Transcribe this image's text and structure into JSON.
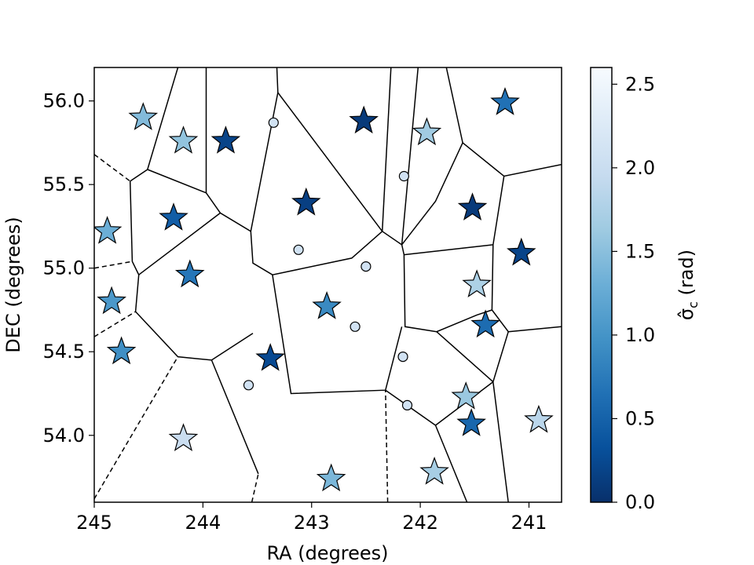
{
  "chart_data": {
    "type": "scatter",
    "xlabel": "RA (degrees)",
    "ylabel": "DEC (degrees)",
    "xlim": [
      245.0,
      240.7
    ],
    "ylim": [
      53.6,
      56.2
    ],
    "x_ticks": [
      {
        "value": 245,
        "label": "245"
      },
      {
        "value": 244,
        "label": "244"
      },
      {
        "value": 243,
        "label": "243"
      },
      {
        "value": 242,
        "label": "242"
      },
      {
        "value": 241,
        "label": "241"
      }
    ],
    "y_ticks": [
      {
        "value": 54.0,
        "label": "54.0"
      },
      {
        "value": 54.5,
        "label": "54.5"
      },
      {
        "value": 55.0,
        "label": "55.0"
      },
      {
        "value": 55.5,
        "label": "55.5"
      },
      {
        "value": 56.0,
        "label": "56.0"
      }
    ],
    "colorbar": {
      "label_main": "σ̂",
      "label_sub": "c",
      "label_unit": " (rad)",
      "range": [
        0.0,
        2.6
      ],
      "ticks": [
        {
          "value": 0.0,
          "label": "0.0"
        },
        {
          "value": 0.5,
          "label": "0.5"
        },
        {
          "value": 1.0,
          "label": "1.0"
        },
        {
          "value": 1.5,
          "label": "1.5"
        },
        {
          "value": 2.0,
          "label": "2.0"
        },
        {
          "value": 2.5,
          "label": "2.5"
        }
      ],
      "colormap": "Blues_r",
      "stops": [
        "#08306b",
        "#08519c",
        "#2171b5",
        "#4292c6",
        "#6baed6",
        "#9ecae1",
        "#c6dbef",
        "#deebf7",
        "#f7fbff"
      ]
    },
    "stars": [
      {
        "ra": 244.55,
        "dec": 55.9,
        "value": 1.45
      },
      {
        "ra": 244.18,
        "dec": 55.76,
        "value": 1.55
      },
      {
        "ra": 243.79,
        "dec": 55.76,
        "value": 0.2
      },
      {
        "ra": 242.52,
        "dec": 55.88,
        "value": 0.1
      },
      {
        "ra": 241.94,
        "dec": 55.81,
        "value": 1.65
      },
      {
        "ra": 241.22,
        "dec": 55.99,
        "value": 0.65
      },
      {
        "ra": 244.27,
        "dec": 55.3,
        "value": 0.45
      },
      {
        "ra": 243.05,
        "dec": 55.39,
        "value": 0.15
      },
      {
        "ra": 241.52,
        "dec": 55.36,
        "value": 0.1
      },
      {
        "ra": 244.88,
        "dec": 55.22,
        "value": 1.3
      },
      {
        "ra": 241.07,
        "dec": 55.09,
        "value": 0.2
      },
      {
        "ra": 244.12,
        "dec": 54.96,
        "value": 0.7
      },
      {
        "ra": 241.48,
        "dec": 54.9,
        "value": 1.75
      },
      {
        "ra": 244.84,
        "dec": 54.8,
        "value": 1.05
      },
      {
        "ra": 242.86,
        "dec": 54.77,
        "value": 0.9
      },
      {
        "ra": 241.4,
        "dec": 54.66,
        "value": 0.6
      },
      {
        "ra": 244.75,
        "dec": 54.5,
        "value": 0.95
      },
      {
        "ra": 243.38,
        "dec": 54.46,
        "value": 0.25
      },
      {
        "ra": 241.58,
        "dec": 54.23,
        "value": 1.6
      },
      {
        "ra": 241.53,
        "dec": 54.07,
        "value": 0.55
      },
      {
        "ra": 240.91,
        "dec": 54.09,
        "value": 1.85
      },
      {
        "ra": 244.18,
        "dec": 53.98,
        "value": 2.0
      },
      {
        "ra": 242.82,
        "dec": 53.74,
        "value": 1.4
      },
      {
        "ra": 241.87,
        "dec": 53.78,
        "value": 1.7
      }
    ],
    "circles": [
      {
        "ra": 243.35,
        "dec": 55.87,
        "value": 2.1
      },
      {
        "ra": 242.15,
        "dec": 55.55,
        "value": 2.1
      },
      {
        "ra": 243.12,
        "dec": 55.11,
        "value": 2.1
      },
      {
        "ra": 242.5,
        "dec": 55.01,
        "value": 2.1
      },
      {
        "ra": 242.6,
        "dec": 54.65,
        "value": 2.1
      },
      {
        "ra": 242.16,
        "dec": 54.47,
        "value": 2.1
      },
      {
        "ra": 243.58,
        "dec": 54.3,
        "value": 2.1
      },
      {
        "ra": 242.12,
        "dec": 54.18,
        "value": 2.1
      }
    ],
    "voronoi_edges": [
      {
        "style": "dashed",
        "points": [
          [
            245.0,
            55.68
          ],
          [
            244.67,
            55.52
          ]
        ]
      },
      {
        "style": "dashed",
        "points": [
          [
            245.0,
            55.0
          ],
          [
            244.65,
            55.04
          ]
        ]
      },
      {
        "style": "dashed",
        "points": [
          [
            245.0,
            54.59
          ],
          [
            244.62,
            54.74
          ]
        ]
      },
      {
        "style": "dashed",
        "points": [
          [
            245.0,
            53.62
          ],
          [
            244.23,
            54.47
          ]
        ]
      },
      {
        "style": "dashed",
        "points": [
          [
            243.55,
            53.6
          ],
          [
            243.49,
            53.77
          ]
        ]
      },
      {
        "style": "dashed",
        "points": [
          [
            242.3,
            53.6
          ],
          [
            242.32,
            54.27
          ]
        ]
      },
      {
        "style": "solid",
        "points": [
          [
            244.67,
            55.52
          ],
          [
            244.65,
            55.04
          ],
          [
            244.59,
            54.96
          ],
          [
            244.62,
            54.74
          ],
          [
            244.23,
            54.47
          ],
          [
            243.92,
            54.45
          ],
          [
            243.54,
            54.61
          ]
        ]
      },
      {
        "style": "solid",
        "points": [
          [
            244.67,
            55.52
          ],
          [
            244.51,
            55.59
          ],
          [
            244.23,
            56.2
          ]
        ]
      },
      {
        "style": "solid",
        "points": [
          [
            244.51,
            55.59
          ],
          [
            243.97,
            55.45
          ],
          [
            243.97,
            56.2
          ]
        ]
      },
      {
        "style": "solid",
        "points": [
          [
            243.97,
            55.45
          ],
          [
            243.84,
            55.33
          ],
          [
            243.56,
            55.22
          ],
          [
            243.31,
            56.05
          ],
          [
            243.32,
            56.2
          ]
        ]
      },
      {
        "style": "solid",
        "points": [
          [
            243.84,
            55.33
          ],
          [
            244.59,
            54.96
          ]
        ]
      },
      {
        "style": "solid",
        "points": [
          [
            243.56,
            55.22
          ],
          [
            243.54,
            55.03
          ],
          [
            243.36,
            54.96
          ],
          [
            242.63,
            55.06
          ],
          [
            242.35,
            55.22
          ],
          [
            242.17,
            55.14
          ],
          [
            241.86,
            55.4
          ],
          [
            241.61,
            55.75
          ],
          [
            241.23,
            55.55
          ],
          [
            240.7,
            55.62
          ]
        ]
      },
      {
        "style": "solid",
        "points": [
          [
            243.31,
            56.05
          ],
          [
            242.35,
            55.22
          ]
        ]
      },
      {
        "style": "solid",
        "points": [
          [
            243.36,
            54.96
          ],
          [
            243.19,
            54.25
          ],
          [
            242.32,
            54.27
          ],
          [
            242.17,
            54.65
          ]
        ]
      },
      {
        "style": "solid",
        "points": [
          [
            243.92,
            54.45
          ],
          [
            243.49,
            53.77
          ]
        ]
      },
      {
        "style": "solid",
        "points": [
          [
            242.35,
            55.22
          ],
          [
            242.27,
            56.2
          ]
        ]
      },
      {
        "style": "solid",
        "points": [
          [
            242.17,
            55.14
          ],
          [
            242.02,
            56.2
          ]
        ]
      },
      {
        "style": "solid",
        "points": [
          [
            242.17,
            55.14
          ],
          [
            242.15,
            55.08
          ],
          [
            242.14,
            54.65
          ],
          [
            241.85,
            54.62
          ],
          [
            241.48,
            54.72
          ],
          [
            241.34,
            54.75
          ]
        ]
      },
      {
        "style": "solid",
        "points": [
          [
            241.61,
            55.75
          ],
          [
            241.76,
            56.2
          ]
        ]
      },
      {
        "style": "solid",
        "points": [
          [
            242.15,
            55.08
          ],
          [
            241.33,
            55.14
          ]
        ]
      },
      {
        "style": "solid",
        "points": [
          [
            241.23,
            55.55
          ],
          [
            241.33,
            55.14
          ],
          [
            241.34,
            54.75
          ],
          [
            241.19,
            54.62
          ],
          [
            241.33,
            54.32
          ]
        ]
      },
      {
        "style": "solid",
        "points": [
          [
            241.19,
            54.62
          ],
          [
            240.7,
            54.65
          ]
        ]
      },
      {
        "style": "solid",
        "points": [
          [
            241.85,
            54.62
          ],
          [
            241.33,
            54.32
          ]
        ]
      },
      {
        "style": "solid",
        "points": [
          [
            242.32,
            54.27
          ],
          [
            241.86,
            54.06
          ]
        ]
      },
      {
        "style": "solid",
        "points": [
          [
            241.86,
            54.06
          ],
          [
            241.57,
            53.6
          ]
        ]
      },
      {
        "style": "solid",
        "points": [
          [
            241.86,
            54.06
          ],
          [
            241.33,
            54.32
          ]
        ]
      },
      {
        "style": "solid",
        "points": [
          [
            241.33,
            54.32
          ],
          [
            241.19,
            53.6
          ]
        ]
      }
    ]
  }
}
